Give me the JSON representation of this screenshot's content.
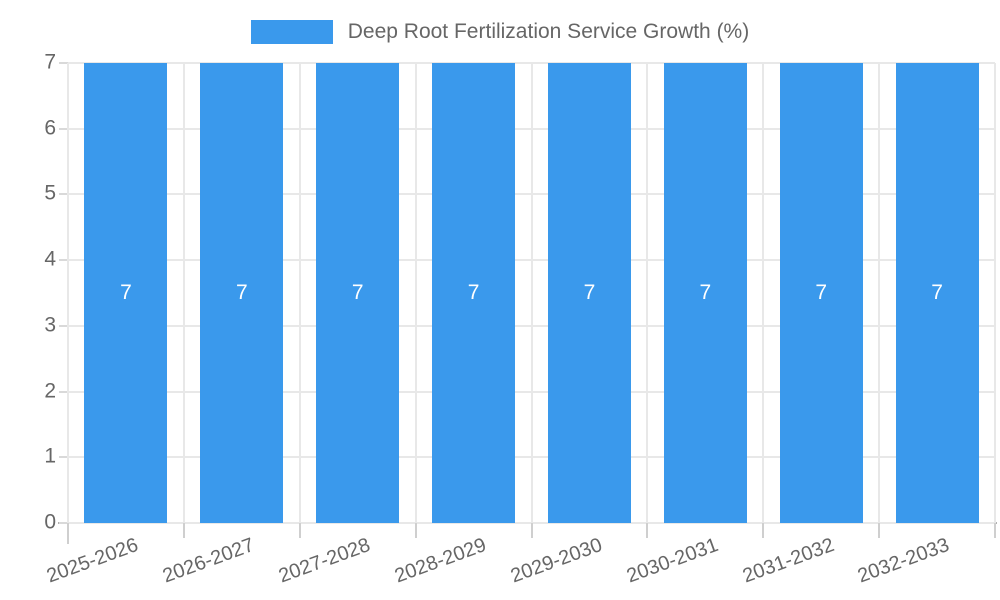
{
  "chart_data": {
    "type": "bar",
    "title": "Deep Root Fertilization Service Growth (%)",
    "legend": {
      "label": "Deep Root Fertilization Service Growth (%)",
      "position": "top"
    },
    "categories": [
      "2025-2026",
      "2026-2027",
      "2027-2028",
      "2028-2029",
      "2029-2030",
      "2030-2031",
      "2031-2032",
      "2032-2033"
    ],
    "values": [
      7,
      7,
      7,
      7,
      7,
      7,
      7,
      7
    ],
    "bar_labels": [
      "7",
      "7",
      "7",
      "7",
      "7",
      "7",
      "7",
      "7"
    ],
    "xlabel": "",
    "ylabel": "",
    "ylim": [
      0,
      7
    ],
    "y_ticks": [
      0,
      1,
      2,
      3,
      4,
      5,
      6,
      7
    ],
    "grid": true,
    "x_label_rotation_deg": -20,
    "colors": {
      "bar": "#3a99ec",
      "grid": "#e8e8e8",
      "axis": "#b0b0b0",
      "tick": "#cfcfcf",
      "text": "#666666",
      "bar_label": "#ffffff"
    }
  }
}
